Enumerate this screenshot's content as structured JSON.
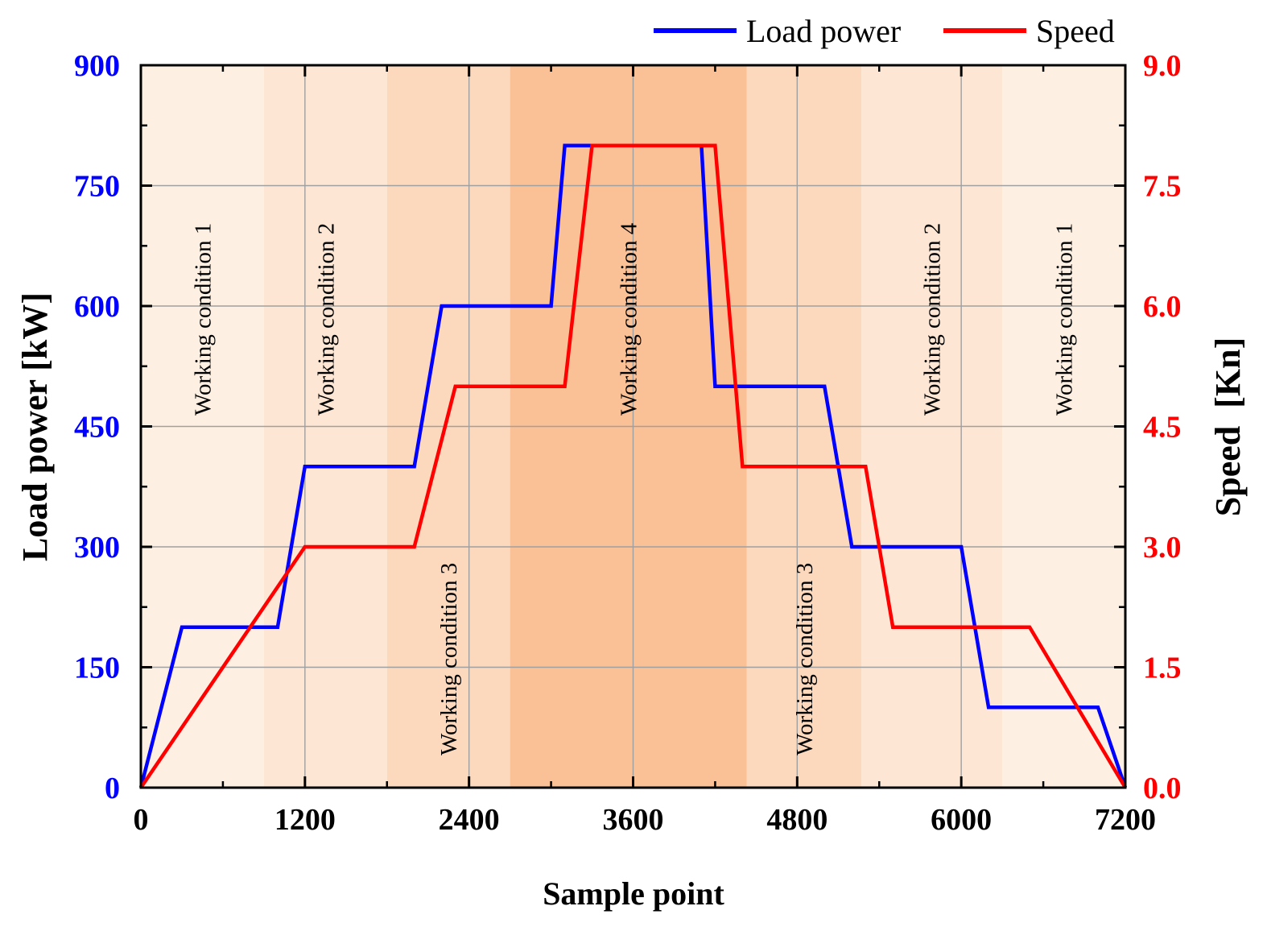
{
  "chart_data": {
    "type": "line",
    "xlabel": "Sample point",
    "ylabel_left": "Load power [kW]",
    "ylabel_right": "Speed  [Kn]",
    "xlim": [
      0,
      7200
    ],
    "ylim_left": [
      0,
      900
    ],
    "ylim_right": [
      0,
      9
    ],
    "x_ticks": [
      "0",
      "1200",
      "2400",
      "3600",
      "4800",
      "6000",
      "7200"
    ],
    "x_tick_values": [
      0,
      1200,
      2400,
      3600,
      4800,
      6000,
      7200
    ],
    "y_ticks_left": [
      "0",
      "150",
      "300",
      "450",
      "600",
      "750",
      "900"
    ],
    "y_tick_values_left": [
      0,
      150,
      300,
      450,
      600,
      750,
      900
    ],
    "y_ticks_right": [
      "0.0",
      "1.5",
      "3.0",
      "4.5",
      "6.0",
      "7.5",
      "9.0"
    ],
    "y_tick_values_right": [
      0,
      1.5,
      3,
      4.5,
      6,
      7.5,
      9
    ],
    "grid": true,
    "legend_position": "top-right",
    "series": [
      {
        "name": "Load power",
        "axis": "left",
        "color": "#0000ff",
        "x": [
          0,
          300,
          1000,
          1200,
          2000,
          2200,
          3000,
          3100,
          3300,
          4100,
          4200,
          5000,
          5200,
          6000,
          6200,
          7000,
          7200
        ],
        "y": [
          0,
          200,
          200,
          400,
          400,
          600,
          600,
          800,
          800,
          800,
          500,
          500,
          300,
          300,
          100,
          100,
          0
        ]
      },
      {
        "name": "Speed",
        "axis": "right",
        "color": "#ff0000",
        "x": [
          0,
          1200,
          2000,
          2300,
          3100,
          3300,
          4200,
          4400,
          5300,
          5500,
          6500,
          7200
        ],
        "y": [
          0,
          3,
          3,
          5,
          5,
          8,
          8,
          4,
          4,
          2,
          2,
          0
        ]
      }
    ],
    "regions": [
      {
        "label": "Working condition 1",
        "x0": 0,
        "x1": 900,
        "color": "#fdf0e2",
        "label_pos": "upper"
      },
      {
        "label": "Working condition 2",
        "x0": 900,
        "x1": 1800,
        "color": "#fde6d3",
        "label_pos": "upper"
      },
      {
        "label": "Working condition 3",
        "x0": 1800,
        "x1": 2700,
        "color": "#fcd8bc",
        "label_pos": "lower"
      },
      {
        "label": "Working condition 4",
        "x0": 2700,
        "x1": 4430,
        "color": "#fbc196",
        "label_pos": "upper"
      },
      {
        "label": "Working condition 3",
        "x0": 4430,
        "x1": 5270,
        "color": "#fcd8bc",
        "label_pos": "lower"
      },
      {
        "label": "Working condition 2",
        "x0": 5270,
        "x1": 6300,
        "color": "#fde6d3",
        "label_pos": "upper"
      },
      {
        "label": "Working condition 1",
        "x0": 6300,
        "x1": 7200,
        "color": "#fdf0e2",
        "label_pos": "upper"
      }
    ]
  }
}
